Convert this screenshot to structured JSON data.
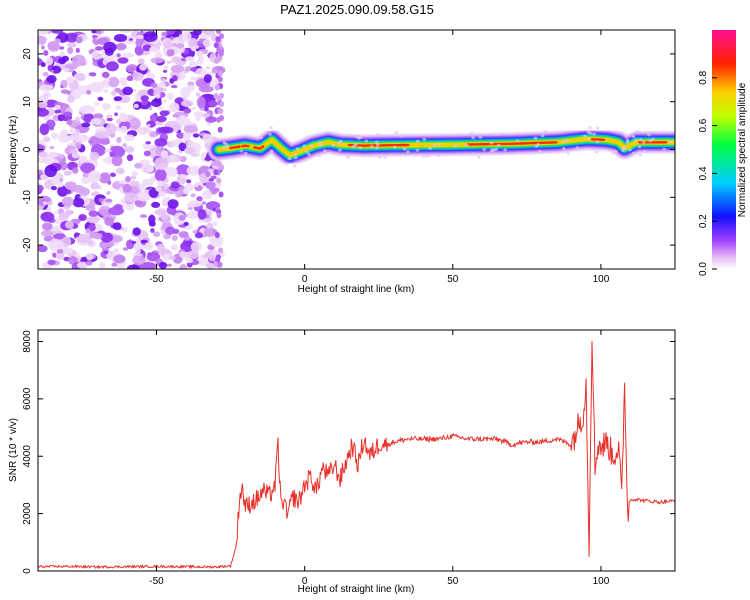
{
  "title": "PAZ1.2025.090.09.58.G15",
  "chart_data": [
    {
      "type": "heatmap",
      "xlabel": "Height of straight line (km)",
      "ylabel": "Frequency (Hz)",
      "xlim": [
        -90,
        125
      ],
      "ylim": [
        -25,
        25
      ],
      "xticks": [
        -50,
        0,
        50,
        100
      ],
      "xtick_labels": [
        "-50",
        "0",
        "50",
        "100"
      ],
      "yticks": [
        -20,
        -10,
        0,
        10,
        20
      ],
      "ytick_labels": [
        "-20",
        "-10",
        "0",
        "10",
        "20"
      ],
      "noise_region_x": [
        -90,
        -29
      ],
      "ridge": [
        {
          "x": -29,
          "y": 0.0
        },
        {
          "x": -25,
          "y": 0.3
        },
        {
          "x": -20,
          "y": 0.8
        },
        {
          "x": -15,
          "y": 0.2
        },
        {
          "x": -11,
          "y": 2.0
        },
        {
          "x": -8,
          "y": 0.3
        },
        {
          "x": -5,
          "y": -1.2
        },
        {
          "x": -1,
          "y": -0.3
        },
        {
          "x": 3,
          "y": 0.8
        },
        {
          "x": 8,
          "y": 1.5
        },
        {
          "x": 12,
          "y": 1.0
        },
        {
          "x": 20,
          "y": 0.8
        },
        {
          "x": 30,
          "y": 0.9
        },
        {
          "x": 50,
          "y": 1.0
        },
        {
          "x": 70,
          "y": 1.2
        },
        {
          "x": 85,
          "y": 1.5
        },
        {
          "x": 95,
          "y": 2.2
        },
        {
          "x": 102,
          "y": 2.0
        },
        {
          "x": 106,
          "y": 1.5
        },
        {
          "x": 108,
          "y": 0.3
        },
        {
          "x": 112,
          "y": 1.5
        },
        {
          "x": 125,
          "y": 1.5
        }
      ],
      "colorbar": {
        "label": "Normalized spectral amplitude",
        "ticks": [
          0.0,
          0.2,
          0.4,
          0.6,
          0.8
        ],
        "tick_labels": [
          "0.0",
          "0.2",
          "0.4",
          "0.6",
          "0.8"
        ],
        "range": [
          0,
          1
        ]
      }
    },
    {
      "type": "line",
      "xlabel": "Height of straight line (km)",
      "ylabel": "SNR (10 * v/v)",
      "xlim": [
        -90,
        125
      ],
      "ylim": [
        0,
        8400
      ],
      "xticks": [
        -50,
        0,
        50,
        100
      ],
      "xtick_labels": [
        "-50",
        "0",
        "50",
        "100"
      ],
      "yticks": [
        0,
        2000,
        4000,
        6000,
        8000
      ],
      "ytick_labels": [
        "0",
        "2000",
        "4000",
        "6000",
        "8000"
      ],
      "series": [
        {
          "color": "#e8302a",
          "x": [
            -90,
            -80,
            -70,
            -60,
            -50,
            -40,
            -30,
            -25,
            -23,
            -22,
            -21,
            -20,
            -18,
            -16,
            -14,
            -12,
            -10,
            -9,
            -8,
            -7,
            -6,
            -5,
            -4,
            -2,
            0,
            2,
            4,
            6,
            8,
            10,
            12,
            14,
            16,
            18,
            20,
            22,
            24,
            26,
            28,
            30,
            35,
            40,
            45,
            50,
            55,
            60,
            65,
            70,
            75,
            80,
            85,
            88,
            90,
            92,
            94,
            95,
            96,
            97,
            98,
            99,
            100,
            102,
            104,
            106,
            107,
            108,
            109,
            110,
            112,
            115,
            120,
            125
          ],
          "y": [
            150,
            160,
            140,
            150,
            160,
            150,
            140,
            180,
            900,
            2600,
            2900,
            2200,
            2400,
            2500,
            2800,
            2600,
            3000,
            4400,
            2300,
            2500,
            1900,
            2200,
            2600,
            2400,
            3000,
            3300,
            2800,
            3600,
            3300,
            3700,
            3200,
            3800,
            4400,
            3700,
            4600,
            4000,
            4300,
            4500,
            4400,
            4500,
            4600,
            4600,
            4600,
            4700,
            4600,
            4600,
            4600,
            4400,
            4500,
            4500,
            4600,
            4500,
            4400,
            5000,
            5500,
            6500,
            900,
            8400,
            3500,
            4500,
            4300,
            4500,
            4000,
            4300,
            2500,
            6600,
            2000,
            2500,
            2500,
            2450,
            2400,
            2450
          ]
        }
      ]
    }
  ]
}
